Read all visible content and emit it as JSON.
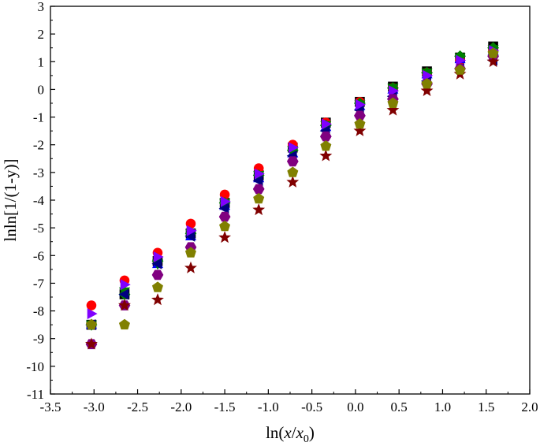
{
  "chart_data": {
    "type": "scatter",
    "xlabel": {
      "pre": "ln(",
      "x": "x",
      "slash": "/",
      "x0": "x",
      "sub": "0",
      "post": ")"
    },
    "ylabel": "lnln[1/(1-y)]",
    "xlim": [
      -3.5,
      2.0
    ],
    "ylim": [
      -11,
      3
    ],
    "xticks": [
      -3.5,
      -3.0,
      -2.5,
      -2.0,
      -1.5,
      -1.0,
      -0.5,
      0.0,
      0.5,
      1.0,
      1.5,
      2.0
    ],
    "xtick_labels": [
      "-3.5",
      "-3.0",
      "-2.5",
      "-2.0",
      "-1.5",
      "-1.0",
      "-0.5",
      "0.0",
      "0.5",
      "1.0",
      "1.5",
      "2.0"
    ],
    "yticks": [
      3,
      2,
      1,
      0,
      -1,
      -2,
      -3,
      -4,
      -5,
      -6,
      -7,
      -8,
      -9,
      -10,
      -11
    ],
    "ytick_labels": [
      "3",
      "2",
      "1",
      "0",
      "-1",
      "-2",
      "-3",
      "-4",
      "-5",
      "-6",
      "-7",
      "-8",
      "-9",
      "-10",
      "-11"
    ],
    "x": [
      -3.03,
      -2.65,
      -2.27,
      -1.89,
      -1.5,
      -1.11,
      -0.72,
      -0.34,
      0.05,
      0.43,
      0.82,
      1.2,
      1.58
    ],
    "grid": false,
    "legend": "none",
    "series": [
      {
        "marker": "square",
        "color": "#000000",
        "values": [
          -8.5,
          -7.4,
          -6.2,
          -5.2,
          -4.1,
          -3.1,
          -2.1,
          -1.2,
          -0.45,
          0.1,
          0.65,
          1.15,
          1.55
        ]
      },
      {
        "marker": "circle",
        "color": "#ff0000",
        "values": [
          -7.8,
          -6.9,
          -5.9,
          -4.85,
          -3.8,
          -2.85,
          -2.0,
          -1.2,
          -0.45,
          0.05,
          0.6,
          1.05,
          1.45
        ]
      },
      {
        "marker": "triangle-up",
        "color": "#0000ff",
        "values": [
          -8.5,
          -7.3,
          -6.3,
          -5.3,
          -4.2,
          -3.2,
          -2.3,
          -1.35,
          -0.6,
          0.0,
          0.55,
          1.1,
          1.4
        ]
      },
      {
        "marker": "triangle-down",
        "color": "#008000",
        "values": [
          -8.5,
          -7.3,
          -6.3,
          -5.2,
          -4.1,
          -3.1,
          -2.2,
          -1.3,
          -0.55,
          0.05,
          0.6,
          1.15,
          1.45
        ]
      },
      {
        "marker": "diamond",
        "color": "#008000",
        "values": [
          -8.5,
          -7.4,
          -6.2,
          -5.2,
          -4.1,
          -3.1,
          -2.2,
          -1.3,
          -0.5,
          0.05,
          0.6,
          1.2,
          1.5
        ]
      },
      {
        "marker": "triangle-left",
        "color": "#000080",
        "values": [
          -8.5,
          -7.4,
          -6.3,
          -5.3,
          -4.3,
          -3.3,
          -2.4,
          -1.5,
          -0.75,
          -0.25,
          0.3,
          0.75,
          1.05
        ]
      },
      {
        "marker": "triangle-right",
        "color": "#8000ff",
        "values": [
          -8.1,
          -7.05,
          -6.05,
          -5.1,
          -4.05,
          -3.05,
          -2.1,
          -1.25,
          -0.55,
          -0.05,
          0.5,
          1.05,
          1.4
        ]
      },
      {
        "marker": "hexagon",
        "color": "#800080",
        "values": [
          -9.2,
          -7.8,
          -6.7,
          -5.7,
          -4.6,
          -3.6,
          -2.6,
          -1.7,
          -0.95,
          -0.35,
          0.2,
          0.75,
          1.2
        ]
      },
      {
        "marker": "star",
        "color": "#800000",
        "values": [
          -9.2,
          -7.8,
          -7.6,
          -6.45,
          -5.35,
          -4.35,
          -3.35,
          -2.4,
          -1.5,
          -0.75,
          -0.05,
          0.55,
          1.0
        ]
      },
      {
        "marker": "pentagon",
        "color": "#808000",
        "values": [
          -8.5,
          -8.5,
          -7.15,
          -5.9,
          -4.95,
          -3.95,
          -3.0,
          -2.05,
          -1.25,
          -0.5,
          0.2,
          0.7,
          1.3
        ]
      }
    ]
  }
}
